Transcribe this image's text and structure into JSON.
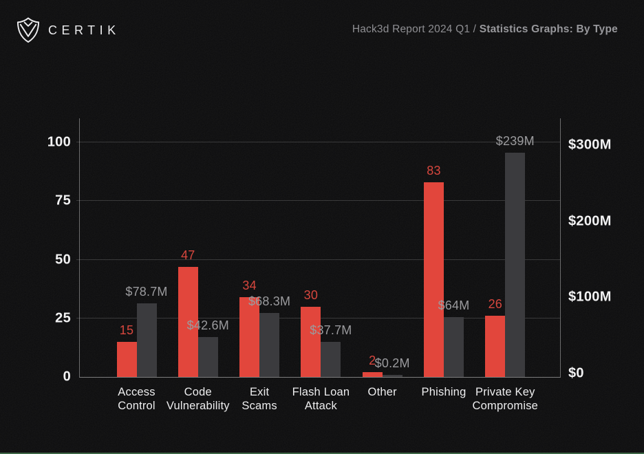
{
  "header": {
    "logo_text": "CERTIK",
    "title_regular": "Hack3d Report 2024 Q1 / ",
    "title_bold": "Statistics Graphs: By Type"
  },
  "chart_data": {
    "type": "bar",
    "title": "Hack3d Report 2024 Q1 / Statistics Graphs: By Type",
    "categories": [
      "Access\nControl",
      "Code\nVulnerability",
      "Exit\nScams",
      "Flash Loan\nAttack",
      "Other",
      "Phishing",
      "Private Key\nCompromise"
    ],
    "series": [
      {
        "name": "incident-count",
        "axis": "left",
        "color": "#e2463c",
        "label_color": "#d8473e",
        "values": [
          15,
          47,
          34,
          30,
          2,
          83,
          26
        ],
        "labels": [
          "15",
          "47",
          "34",
          "30",
          "2",
          "83",
          "26"
        ]
      },
      {
        "name": "loss-usd-millions",
        "axis": "right",
        "color": "#3b3b3e",
        "label_color": "#9b9b9e",
        "values": [
          78.7,
          42.6,
          68.3,
          37.7,
          0.2,
          64,
          239
        ],
        "labels": [
          "$78.7M",
          "$42.6M",
          "$68.3M",
          "$37.7M",
          "$0.2M",
          "$64M",
          "$239M"
        ]
      }
    ],
    "left_axis": {
      "range": [
        0,
        110
      ],
      "ticks": [
        0,
        25,
        50,
        75,
        100
      ],
      "labels": [
        "0",
        "25",
        "50",
        "75",
        "100"
      ]
    },
    "right_axis": {
      "range": [
        0,
        300
      ],
      "ticks": [
        0,
        100,
        200,
        300
      ],
      "labels": [
        "$0",
        "$100M",
        "$200M",
        "$300M"
      ]
    },
    "grid": true,
    "legend": "none",
    "colors": {
      "count_bar": "#e2463c",
      "loss_bar": "#3b3b3e",
      "background": "#0b0b0c",
      "bottom_accent": "#3f6847"
    }
  }
}
